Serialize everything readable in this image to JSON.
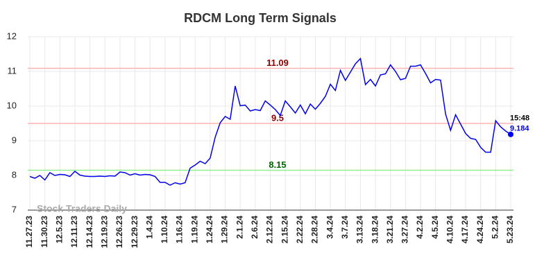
{
  "chart_data": {
    "type": "line",
    "title": "RDCM Long Term Signals",
    "categories": [
      "11.27.23",
      null,
      null,
      "11.30.23",
      null,
      null,
      "12.5.23",
      null,
      null,
      "12.11.23",
      null,
      null,
      "12.14.23",
      null,
      null,
      "12.19.23",
      null,
      null,
      "12.26.23",
      null,
      null,
      "12.29.23",
      null,
      null,
      "1.4.24",
      null,
      null,
      "1.10.24",
      null,
      null,
      "1.16.24",
      null,
      null,
      "1.19.24",
      null,
      null,
      "1.24.24",
      null,
      null,
      "1.29.24",
      null,
      null,
      "2.1.24",
      null,
      null,
      "2.6.24",
      null,
      null,
      "2.12.24",
      null,
      null,
      "2.15.24",
      null,
      null,
      "2.22.24",
      null,
      null,
      "2.28.24",
      null,
      null,
      "3.4.24",
      null,
      null,
      "3.7.24",
      null,
      null,
      "3.13.24",
      null,
      null,
      "3.18.24",
      null,
      null,
      "3.21.24",
      null,
      null,
      "3.27.24",
      null,
      null,
      "4.2.24",
      null,
      null,
      "4.5.24",
      null,
      null,
      "4.10.24",
      null,
      null,
      "4.17.24",
      null,
      null,
      "4.24.24",
      null,
      null,
      "5.2.24",
      null,
      null,
      "5.23.24"
    ],
    "series": [
      {
        "name": "RDCM",
        "color": "#0000ee",
        "values": [
          7.97,
          7.92,
          8.0,
          7.87,
          8.08,
          8.0,
          8.03,
          8.02,
          7.97,
          8.12,
          8.01,
          7.98,
          7.97,
          7.97,
          7.98,
          7.97,
          7.99,
          7.98,
          8.1,
          8.08,
          8.01,
          8.05,
          8.01,
          8.03,
          8.02,
          7.97,
          7.8,
          7.8,
          7.72,
          7.79,
          7.75,
          7.79,
          8.21,
          8.3,
          8.41,
          8.34,
          8.5,
          9.1,
          9.52,
          9.7,
          9.62,
          10.58,
          10.01,
          10.03,
          9.86,
          9.9,
          9.87,
          10.15,
          10.03,
          9.9,
          9.73,
          10.15,
          9.98,
          9.8,
          10.03,
          9.78,
          10.06,
          9.91,
          10.08,
          10.28,
          10.63,
          10.45,
          11.03,
          10.74,
          10.98,
          11.22,
          11.37,
          10.62,
          10.77,
          10.58,
          10.9,
          10.93,
          11.19,
          11.0,
          10.76,
          10.8,
          11.15,
          11.15,
          11.19,
          10.94,
          10.67,
          10.77,
          10.75,
          9.77,
          9.3,
          9.75,
          9.48,
          9.21,
          9.07,
          9.04,
          8.81,
          8.67,
          8.67,
          9.58,
          9.4,
          9.28,
          9.184
        ]
      }
    ],
    "ylim": [
      7,
      12
    ],
    "yticks": [
      7,
      8,
      9,
      10,
      11,
      12
    ],
    "grid": true,
    "hlines": [
      {
        "value": 11.09,
        "color": "#ffb3b3",
        "label_color": "#8b0000"
      },
      {
        "value": 9.5,
        "color": "#ffb3b3",
        "label_color": "#8b0000"
      },
      {
        "value": 8.15,
        "color": "#90ee90",
        "label_color": "#006400"
      }
    ],
    "last_time": "15:48",
    "watermark": "Stock Traders Daily"
  }
}
